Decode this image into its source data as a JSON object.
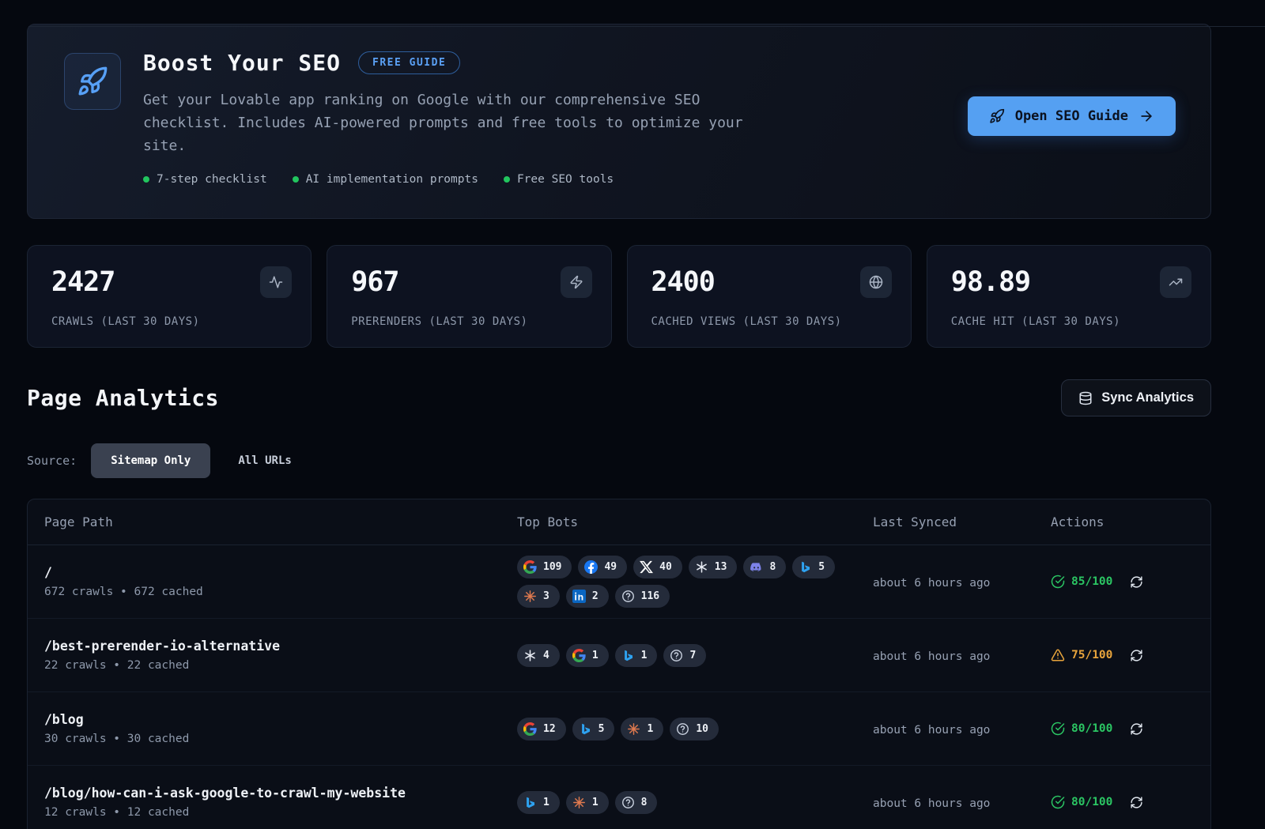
{
  "banner": {
    "title": "Boost Your SEO",
    "badge": "FREE GUIDE",
    "description": "Get your Lovable app ranking on Google with our comprehensive SEO checklist. Includes AI-powered prompts and free tools to optimize your site.",
    "features": [
      {
        "label": "7-step checklist"
      },
      {
        "label": "AI implementation prompts"
      },
      {
        "label": "Free SEO tools"
      }
    ],
    "cta_label": "Open SEO Guide"
  },
  "stats": [
    {
      "value": "2427",
      "label": "CRAWLS (LAST 30 DAYS)",
      "icon": "activity-icon"
    },
    {
      "value": "967",
      "label": "PRERENDERS (LAST 30 DAYS)",
      "icon": "zap-icon"
    },
    {
      "value": "2400",
      "label": "CACHED VIEWS (LAST 30 DAYS)",
      "icon": "globe-icon"
    },
    {
      "value": "98.89",
      "label": "CACHE HIT (LAST 30 DAYS)",
      "icon": "trending-up-icon"
    }
  ],
  "analytics": {
    "title": "Page Analytics",
    "sync_button_label": "Sync Analytics",
    "source_label": "Source:",
    "source_options": [
      {
        "label": "Sitemap Only",
        "active": true
      },
      {
        "label": "All URLs",
        "active": false
      }
    ]
  },
  "table": {
    "headers": [
      "Page Path",
      "Top Bots",
      "Last Synced",
      "Actions"
    ],
    "rows": [
      {
        "path": "/",
        "meta": "672 crawls • 672 cached",
        "bots": [
          {
            "icon": "google-icon",
            "count": "109"
          },
          {
            "icon": "facebook-icon",
            "count": "49"
          },
          {
            "icon": "x-icon",
            "count": "40"
          },
          {
            "icon": "openai-icon",
            "count": "13"
          },
          {
            "icon": "discord-icon",
            "count": "8"
          },
          {
            "icon": "bing-icon",
            "count": "5"
          },
          {
            "icon": "claude-icon",
            "count": "3"
          },
          {
            "icon": "linkedin-icon",
            "count": "2"
          },
          {
            "icon": "unknown-bot-icon",
            "count": "116"
          }
        ],
        "last_synced": "about 6 hours ago",
        "score": "85/100",
        "score_status": "good"
      },
      {
        "path": "/best-prerender-io-alternative",
        "meta": "22 crawls • 22 cached",
        "bots": [
          {
            "icon": "openai-icon",
            "count": "4"
          },
          {
            "icon": "google-icon",
            "count": "1"
          },
          {
            "icon": "bing-icon",
            "count": "1"
          },
          {
            "icon": "unknown-bot-icon",
            "count": "7"
          }
        ],
        "last_synced": "about 6 hours ago",
        "score": "75/100",
        "score_status": "warning"
      },
      {
        "path": "/blog",
        "meta": "30 crawls • 30 cached",
        "bots": [
          {
            "icon": "google-icon",
            "count": "12"
          },
          {
            "icon": "bing-icon",
            "count": "5"
          },
          {
            "icon": "claude-icon",
            "count": "1"
          },
          {
            "icon": "unknown-bot-icon",
            "count": "10"
          }
        ],
        "last_synced": "about 6 hours ago",
        "score": "80/100",
        "score_status": "good"
      },
      {
        "path": "/blog/how-can-i-ask-google-to-crawl-my-website",
        "meta": "12 crawls • 12 cached",
        "bots": [
          {
            "icon": "bing-icon",
            "count": "1"
          },
          {
            "icon": "claude-icon",
            "count": "1"
          },
          {
            "icon": "unknown-bot-icon",
            "count": "8"
          }
        ],
        "last_synced": "about 6 hours ago",
        "score": "80/100",
        "score_status": "good"
      }
    ]
  },
  "colors": {
    "accent_blue": "#57a0f6",
    "feature_dot_green": "#22c55e",
    "score_good": "#2bc563",
    "score_warning": "#e8a43c"
  }
}
